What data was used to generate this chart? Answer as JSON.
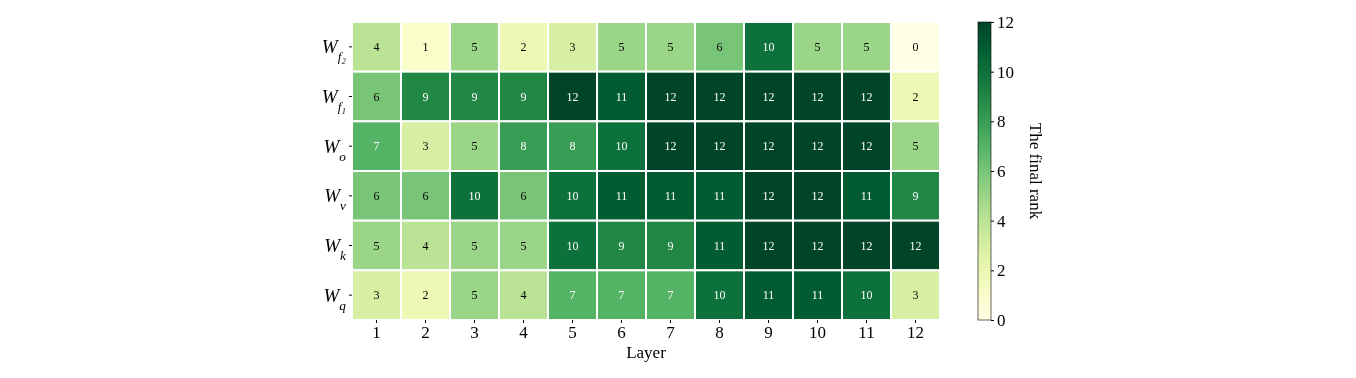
{
  "chart_data": {
    "type": "heatmap",
    "xlabel": "Layer",
    "clabel": "The final rank",
    "categories": [
      "1",
      "2",
      "3",
      "4",
      "5",
      "6",
      "7",
      "8",
      "9",
      "10",
      "11",
      "12"
    ],
    "y_categories": [
      "W$_{f₂}$",
      "W$_{f₁}$",
      "W$_{o}$",
      "W$_{v}$",
      "W$_{k}$",
      "W$_{q}$"
    ],
    "cells": [
      [
        4,
        1,
        5,
        2,
        3,
        5,
        5,
        6,
        10,
        5,
        5,
        0
      ],
      [
        6,
        9,
        9,
        9,
        12,
        11,
        12,
        12,
        12,
        12,
        12,
        2
      ],
      [
        7,
        3,
        5,
        8,
        8,
        10,
        12,
        12,
        12,
        12,
        12,
        5
      ],
      [
        6,
        6,
        10,
        6,
        10,
        11,
        11,
        11,
        12,
        12,
        11,
        9
      ],
      [
        5,
        4,
        5,
        5,
        10,
        9,
        9,
        11,
        12,
        12,
        12,
        12
      ],
      [
        3,
        2,
        5,
        4,
        7,
        7,
        7,
        10,
        11,
        11,
        10,
        3
      ]
    ],
    "clim": [
      0,
      12
    ],
    "cticks": [
      0,
      2,
      4,
      6,
      8,
      10,
      12
    ],
    "data_labels": true
  }
}
